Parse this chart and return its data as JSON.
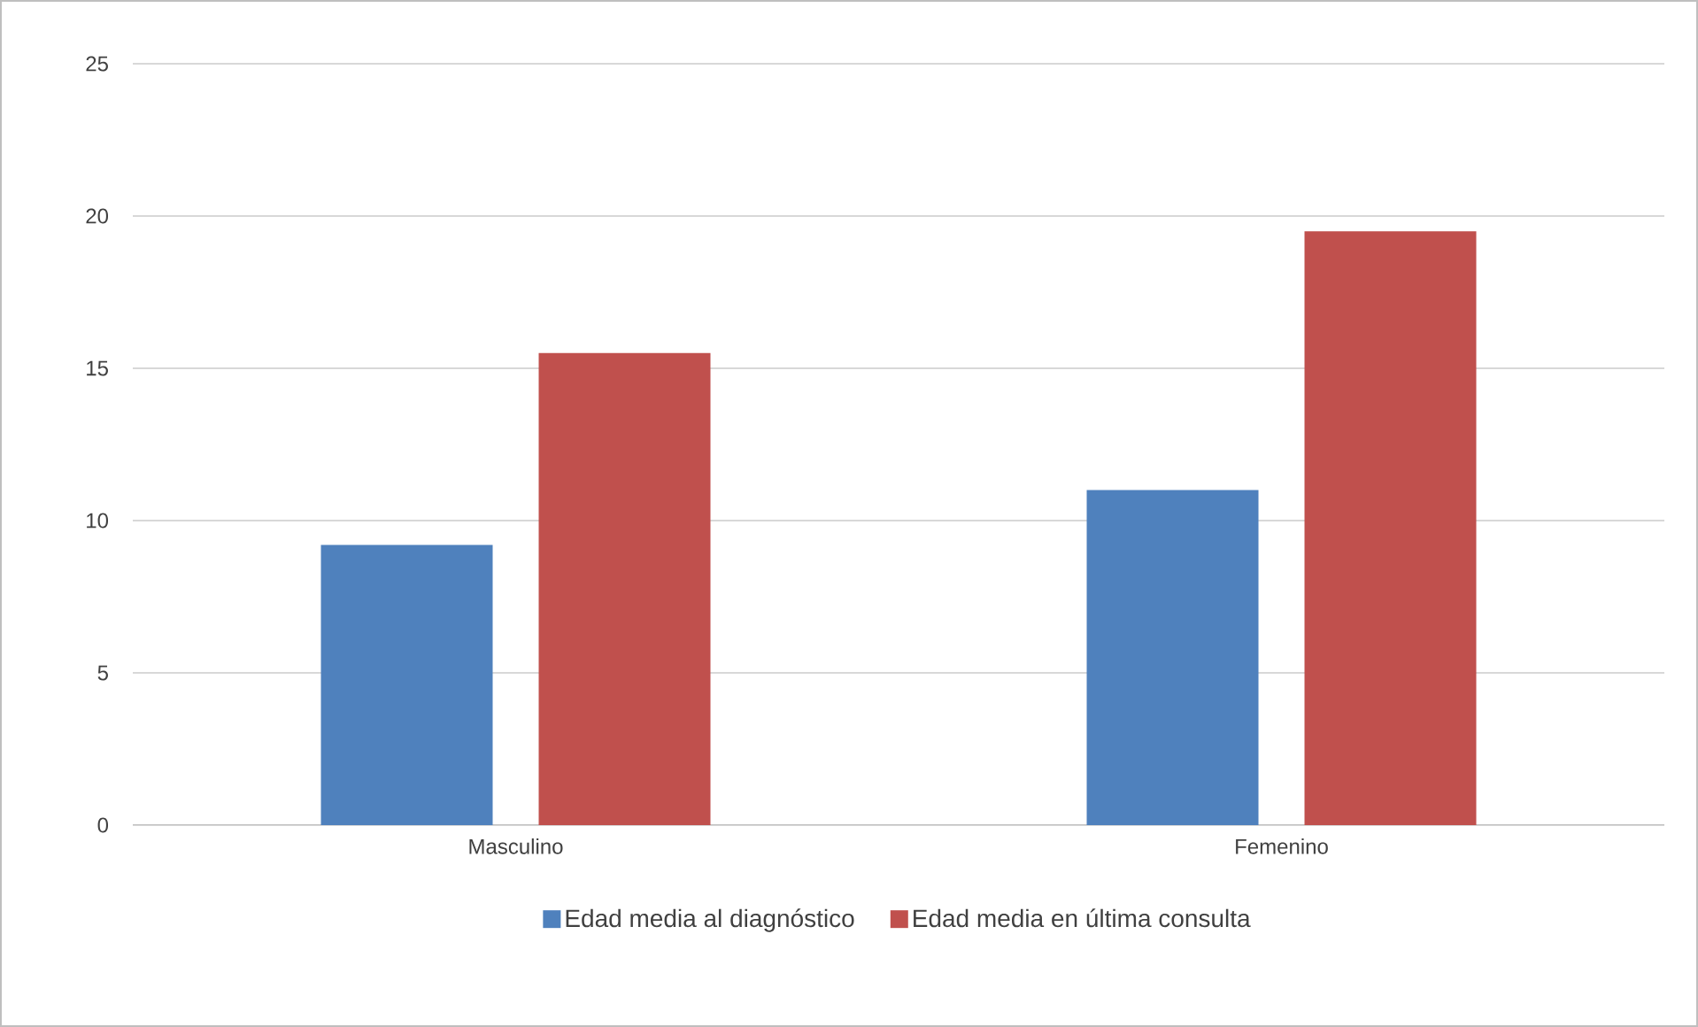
{
  "chart_data": {
    "type": "bar",
    "categories": [
      "Masculino",
      "Femenino"
    ],
    "series": [
      {
        "name": "Edad media al diagnóstico",
        "color": "#4f81bd",
        "values": [
          9.2,
          11
        ]
      },
      {
        "name": "Edad media en última consulta",
        "color": "#c0504d",
        "values": [
          15.5,
          19.5
        ]
      }
    ],
    "ylim": [
      0,
      25
    ],
    "yticks": [
      0,
      5,
      10,
      15,
      20,
      25
    ],
    "grid": "y",
    "legend": "bottom"
  }
}
